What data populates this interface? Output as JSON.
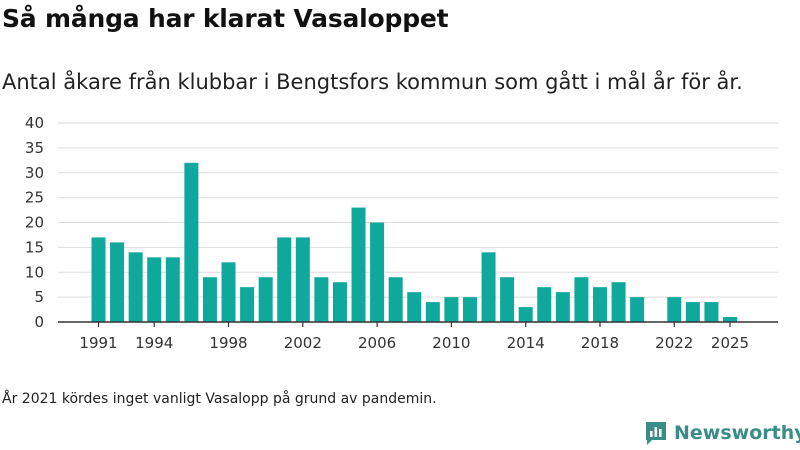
{
  "header": {
    "title": "Så många har klarat Vasaloppet",
    "subtitle": "Antal åkare från klubbar i Bengtsfors kommun som gått i mål år för år."
  },
  "footer": {
    "note": "År 2021 kördes inget vanligt Vasalopp på grund av pandemin.",
    "brand": "Newsworthy",
    "brand_icon": "bar-chart-logo-icon"
  },
  "colors": {
    "bar": "#0fa89d",
    "grid": "#dddddd",
    "axis": "#333333",
    "brand": "#3a8d87"
  },
  "chart_data": {
    "type": "bar",
    "title": "Så många har klarat Vasaloppet",
    "xlabel": "",
    "ylabel": "",
    "x": [
      1991,
      1992,
      1993,
      1994,
      1995,
      1996,
      1997,
      1998,
      1999,
      2000,
      2001,
      2002,
      2003,
      2004,
      2005,
      2006,
      2007,
      2008,
      2009,
      2010,
      2011,
      2012,
      2013,
      2014,
      2015,
      2016,
      2017,
      2018,
      2019,
      2020,
      2021,
      2022,
      2023,
      2024,
      2025
    ],
    "values": [
      17,
      16,
      14,
      13,
      13,
      32,
      9,
      12,
      7,
      9,
      17,
      17,
      9,
      8,
      23,
      20,
      9,
      6,
      4,
      5,
      5,
      14,
      9,
      3,
      7,
      6,
      9,
      7,
      8,
      5,
      null,
      5,
      4,
      4,
      1
    ],
    "ylim": [
      0,
      40
    ],
    "yticks": [
      0,
      5,
      10,
      15,
      20,
      25,
      30,
      35,
      40
    ],
    "xticks": [
      1991,
      1994,
      1998,
      2002,
      2006,
      2010,
      2014,
      2018,
      2022,
      2025
    ],
    "grid": true,
    "legend": "none"
  }
}
